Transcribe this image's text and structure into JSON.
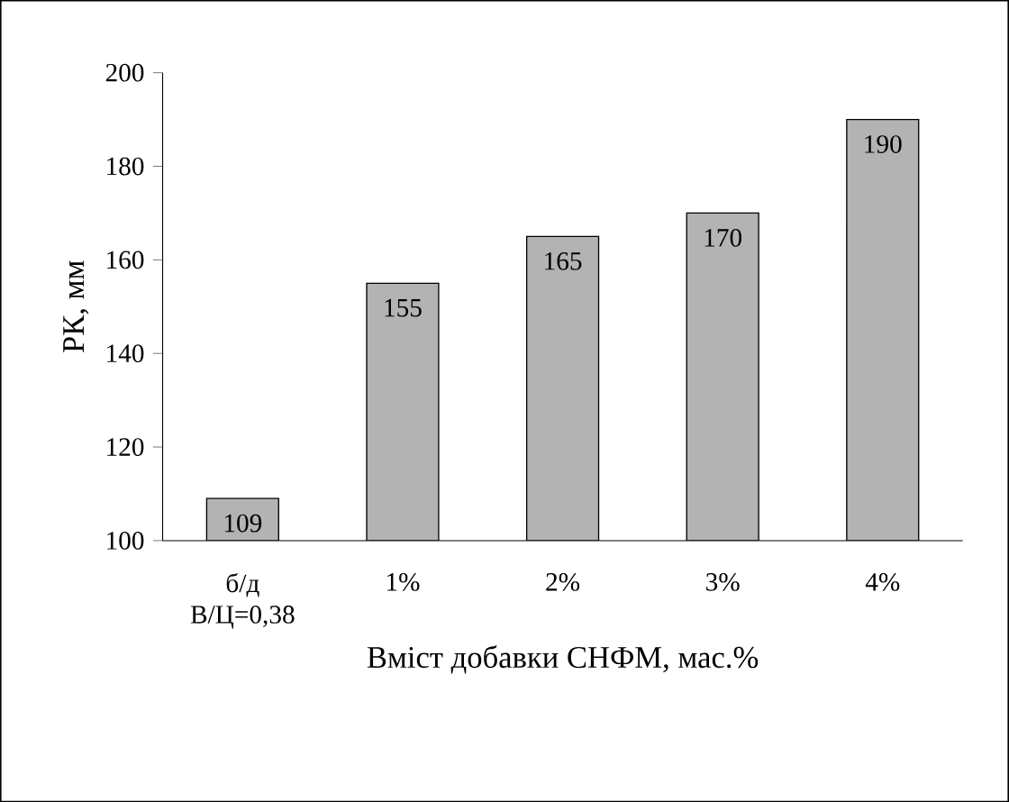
{
  "chart_data": {
    "type": "bar",
    "xlabel": "Вміст добавки СНФМ, мас.%",
    "ylabel": "РК, мм",
    "categories": [
      "б/д В/Ц=0,38",
      "1%",
      "2%",
      "3%",
      "4%"
    ],
    "values": [
      109,
      155,
      165,
      170,
      190
    ],
    "color": "#b3b3b3",
    "ylim": [
      100,
      200
    ],
    "yticks": [
      100,
      120,
      140,
      160,
      180,
      200
    ],
    "data_labels": true,
    "grid": false
  }
}
